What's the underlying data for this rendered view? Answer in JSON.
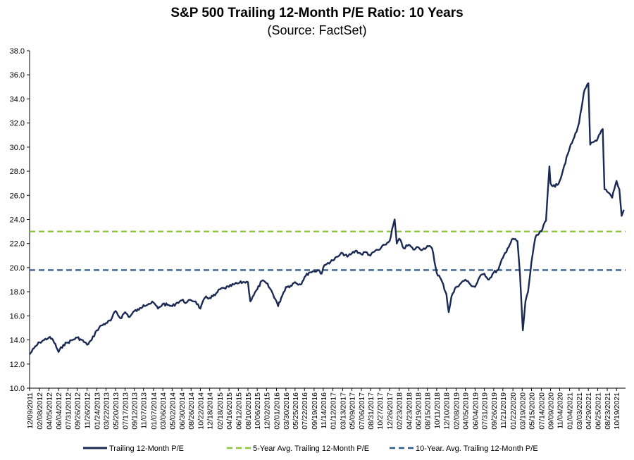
{
  "chart_data": {
    "type": "line",
    "title": "S&P 500 Trailing 12-Month P/E Ratio: 10 Years",
    "subtitle": "(Source: FactSet)",
    "ylim": [
      10.0,
      38.0
    ],
    "yticks": [
      "38.0",
      "36.0",
      "34.0",
      "32.0",
      "30.0",
      "28.0",
      "26.0",
      "24.0",
      "22.0",
      "20.0",
      "18.0",
      "16.0",
      "14.0",
      "12.0",
      "10.0"
    ],
    "x_tick_labels": [
      "12/09/2011",
      "02/08/2012",
      "04/05/2012",
      "06/04/2012",
      "07/31/2012",
      "09/26/2012",
      "11/26/2012",
      "01/24/2013",
      "03/22/2013",
      "05/20/2013",
      "07/17/2013",
      "09/12/2013",
      "11/07/2013",
      "01/07/2014",
      "03/06/2014",
      "05/02/2014",
      "06/30/2014",
      "08/26/2014",
      "10/22/2014",
      "12/18/2014",
      "02/18/2015",
      "04/16/2015",
      "06/12/2015",
      "08/10/2015",
      "10/06/2015",
      "12/02/2015",
      "02/01/2016",
      "03/30/2016",
      "05/25/2016",
      "07/22/2016",
      "09/19/2016",
      "11/14/2016",
      "01/12/2017",
      "03/13/2017",
      "05/09/2017",
      "07/06/2017",
      "08/31/2017",
      "10/27/2017",
      "12/26/2017",
      "02/23/2018",
      "04/23/2018",
      "06/19/2018",
      "08/15/2018",
      "10/11/2018",
      "12/10/2018",
      "02/08/2019",
      "04/05/2019",
      "06/04/2019",
      "07/31/2019",
      "09/26/2019",
      "11/21/2019",
      "01/22/2020",
      "03/19/2020",
      "05/15/2020",
      "07/14/2020",
      "09/09/2020",
      "11/04/2020",
      "01/04/2021",
      "03/03/2021",
      "04/29/2021",
      "06/25/2021",
      "08/23/2021",
      "10/19/2021"
    ],
    "grid": false,
    "legend_position": "bottom",
    "series": [
      {
        "name": "Trailing 12-Month P/E",
        "color": "#1b2a55",
        "style": "solid",
        "points": [
          [
            "12/09/2011",
            12.8
          ],
          [
            "01/05/2012",
            13.3
          ],
          [
            "02/08/2012",
            13.8
          ],
          [
            "03/08/2012",
            14.0
          ],
          [
            "04/05/2012",
            14.2
          ],
          [
            "05/01/2012",
            14.0
          ],
          [
            "06/04/2012",
            13.0
          ],
          [
            "07/03/2012",
            13.6
          ],
          [
            "07/31/2012",
            13.8
          ],
          [
            "08/28/2012",
            14.0
          ],
          [
            "09/26/2012",
            14.2
          ],
          [
            "10/24/2012",
            14.0
          ],
          [
            "11/26/2012",
            13.6
          ],
          [
            "12/24/2012",
            14.0
          ],
          [
            "01/24/2013",
            14.8
          ],
          [
            "02/22/2013",
            15.2
          ],
          [
            "03/22/2013",
            15.4
          ],
          [
            "04/19/2013",
            15.6
          ],
          [
            "05/20/2013",
            16.4
          ],
          [
            "06/18/2013",
            15.8
          ],
          [
            "07/17/2013",
            16.3
          ],
          [
            "08/14/2013",
            15.9
          ],
          [
            "09/12/2013",
            16.4
          ],
          [
            "10/10/2013",
            16.5
          ],
          [
            "11/07/2013",
            16.9
          ],
          [
            "12/09/2013",
            17.0
          ],
          [
            "01/07/2014",
            17.1
          ],
          [
            "02/04/2014",
            16.6
          ],
          [
            "03/06/2014",
            17.0
          ],
          [
            "04/03/2014",
            16.9
          ],
          [
            "05/02/2014",
            16.8
          ],
          [
            "06/02/2014",
            17.1
          ],
          [
            "06/30/2014",
            17.3
          ],
          [
            "07/29/2014",
            17.1
          ],
          [
            "08/26/2014",
            17.3
          ],
          [
            "09/23/2014",
            17.2
          ],
          [
            "10/22/2014",
            16.6
          ],
          [
            "11/19/2014",
            17.5
          ],
          [
            "12/18/2014",
            17.5
          ],
          [
            "01/20/2015",
            17.7
          ],
          [
            "02/18/2015",
            18.2
          ],
          [
            "03/18/2015",
            18.3
          ],
          [
            "04/16/2015",
            18.4
          ],
          [
            "05/14/2015",
            18.6
          ],
          [
            "06/12/2015",
            18.7
          ],
          [
            "07/10/2015",
            18.8
          ],
          [
            "08/10/2015",
            18.8
          ],
          [
            "08/25/2015",
            17.2
          ],
          [
            "09/08/2015",
            17.6
          ],
          [
            "10/06/2015",
            18.2
          ],
          [
            "11/03/2015",
            18.9
          ],
          [
            "12/02/2015",
            18.7
          ],
          [
            "01/04/2016",
            18.0
          ],
          [
            "02/01/2016",
            17.2
          ],
          [
            "02/11/2016",
            16.8
          ],
          [
            "03/01/2016",
            17.5
          ],
          [
            "03/30/2016",
            18.4
          ],
          [
            "04/27/2016",
            18.5
          ],
          [
            "05/25/2016",
            18.8
          ],
          [
            "06/27/2016",
            18.6
          ],
          [
            "07/22/2016",
            19.2
          ],
          [
            "08/19/2016",
            19.6
          ],
          [
            "09/19/2016",
            19.7
          ],
          [
            "10/17/2016",
            19.8
          ],
          [
            "11/04/2016",
            19.5
          ],
          [
            "11/14/2016",
            20.0
          ],
          [
            "12/13/2016",
            20.4
          ],
          [
            "01/12/2017",
            20.6
          ],
          [
            "02/10/2017",
            20.9
          ],
          [
            "03/13/2017",
            21.2
          ],
          [
            "04/11/2017",
            20.9
          ],
          [
            "05/09/2017",
            21.2
          ],
          [
            "06/07/2017",
            21.4
          ],
          [
            "07/06/2017",
            21.1
          ],
          [
            "08/03/2017",
            21.3
          ],
          [
            "08/31/2017",
            21.0
          ],
          [
            "09/29/2017",
            21.4
          ],
          [
            "10/27/2017",
            21.5
          ],
          [
            "11/27/2017",
            21.9
          ],
          [
            "12/26/2017",
            22.2
          ],
          [
            "01/26/2018",
            24.0
          ],
          [
            "02/08/2018",
            22.0
          ],
          [
            "02/23/2018",
            22.4
          ],
          [
            "03/23/2018",
            21.6
          ],
          [
            "04/23/2018",
            21.9
          ],
          [
            "05/21/2018",
            21.5
          ],
          [
            "06/19/2018",
            21.7
          ],
          [
            "07/17/2018",
            21.5
          ],
          [
            "08/15/2018",
            21.8
          ],
          [
            "09/13/2018",
            21.6
          ],
          [
            "10/11/2018",
            19.6
          ],
          [
            "11/08/2018",
            19.0
          ],
          [
            "12/10/2018",
            17.8
          ],
          [
            "12/24/2018",
            16.3
          ],
          [
            "01/10/2019",
            17.6
          ],
          [
            "02/08/2019",
            18.4
          ],
          [
            "03/08/2019",
            18.7
          ],
          [
            "04/05/2019",
            19.0
          ],
          [
            "05/06/2019",
            18.6
          ],
          [
            "06/04/2019",
            18.4
          ],
          [
            "07/01/2019",
            19.2
          ],
          [
            "07/31/2019",
            19.5
          ],
          [
            "08/28/2019",
            19.0
          ],
          [
            "09/26/2019",
            19.6
          ],
          [
            "10/24/2019",
            19.8
          ],
          [
            "11/21/2019",
            20.8
          ],
          [
            "12/20/2019",
            21.6
          ],
          [
            "01/22/2020",
            22.4
          ],
          [
            "02/19/2020",
            22.2
          ],
          [
            "03/05/2020",
            19.5
          ],
          [
            "03/23/2020",
            14.8
          ],
          [
            "04/08/2020",
            17.2
          ],
          [
            "04/24/2020",
            18.0
          ],
          [
            "05/15/2020",
            20.5
          ],
          [
            "06/08/2020",
            22.5
          ],
          [
            "07/14/2020",
            23.0
          ],
          [
            "08/12/2020",
            23.9
          ],
          [
            "09/02/2020",
            28.4
          ],
          [
            "09/09/2020",
            27.0
          ],
          [
            "10/07/2020",
            26.7
          ],
          [
            "11/04/2020",
            27.2
          ],
          [
            "12/03/2020",
            28.5
          ],
          [
            "01/04/2021",
            29.9
          ],
          [
            "02/01/2021",
            30.8
          ],
          [
            "03/03/2021",
            32.0
          ],
          [
            "04/01/2021",
            34.5
          ],
          [
            "04/29/2021",
            35.3
          ],
          [
            "05/10/2021",
            30.2
          ],
          [
            "06/25/2021",
            30.7
          ],
          [
            "07/26/2021",
            31.5
          ],
          [
            "08/06/2021",
            26.5
          ],
          [
            "08/23/2021",
            26.3
          ],
          [
            "09/22/2021",
            25.8
          ],
          [
            "10/19/2021",
            27.2
          ],
          [
            "11/05/2021",
            26.5
          ],
          [
            "11/19/2021",
            24.3
          ],
          [
            "12/03/2021",
            24.8
          ]
        ]
      },
      {
        "name": "5-Year Avg. Trailing 12-Month P/E",
        "color": "#8cc63f",
        "style": "dashed",
        "value": 23.0
      },
      {
        "name": "10-Year. Avg. Trailing 12-Month P/E",
        "color": "#2f5a8a",
        "style": "dashed",
        "value": 19.8
      }
    ]
  }
}
